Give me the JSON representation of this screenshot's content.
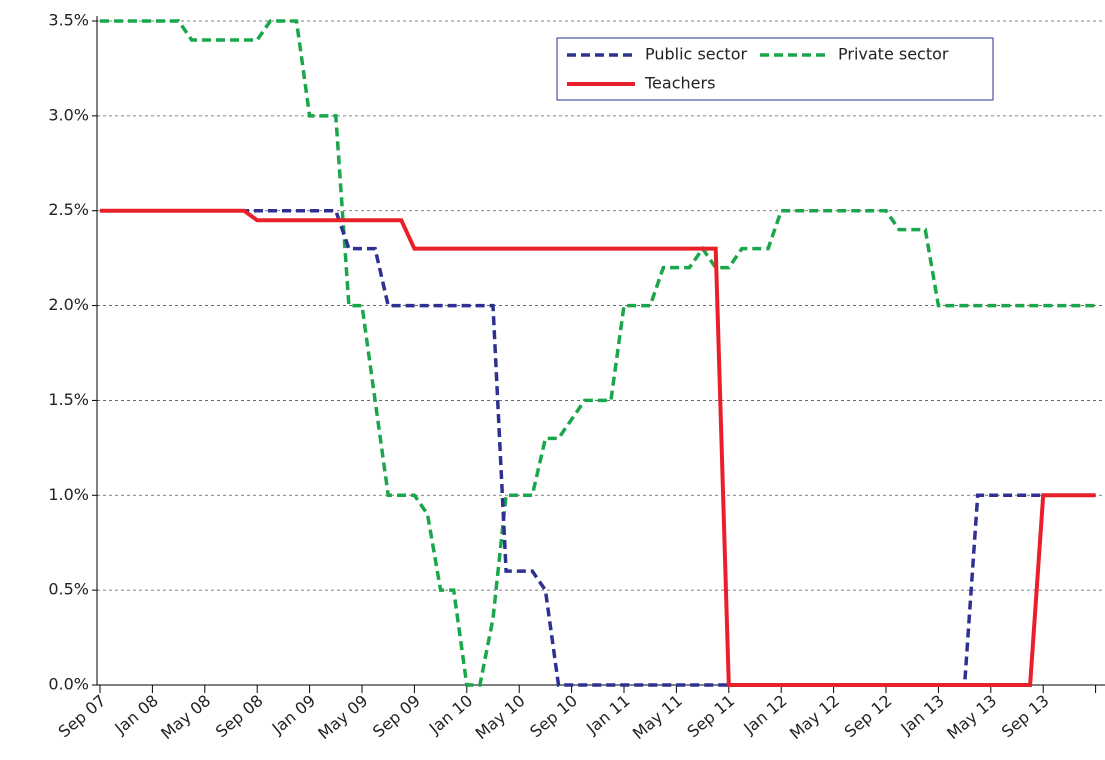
{
  "chart_data": {
    "type": "line",
    "categories": [
      "Sep 07",
      null,
      null,
      null,
      "Jan 08",
      null,
      null,
      null,
      "May 08",
      null,
      null,
      null,
      "Sep 08",
      null,
      null,
      null,
      "Jan 09",
      null,
      null,
      null,
      "May 09",
      null,
      null,
      null,
      "Sep 09",
      null,
      null,
      null,
      "Jan 10",
      null,
      null,
      null,
      "May 10",
      null,
      null,
      null,
      "Sep 10",
      null,
      null,
      null,
      "Jan 11",
      null,
      null,
      null,
      "May 11",
      null,
      null,
      null,
      "Sep 11",
      null,
      null,
      null,
      "Jan 12",
      null,
      null,
      null,
      "May 12",
      null,
      null,
      null,
      "Sep 12",
      null,
      null,
      null,
      "Jan 13",
      null,
      null,
      null,
      "May 13",
      null,
      null,
      null,
      "Sep 13",
      null,
      null,
      null,
      null
    ],
    "series": [
      {
        "name": "Public sector",
        "color": "#2e3192",
        "dashed": true,
        "values": [
          2.5,
          2.5,
          2.5,
          2.5,
          2.5,
          2.5,
          2.5,
          2.5,
          2.5,
          2.5,
          2.5,
          2.5,
          2.5,
          2.5,
          2.5,
          2.5,
          2.5,
          2.5,
          2.5,
          2.3,
          2.3,
          2.3,
          2.0,
          2.0,
          2.0,
          2.0,
          2.0,
          2.0,
          2.0,
          2.0,
          2.0,
          0.6,
          0.6,
          0.6,
          0.5,
          0,
          0,
          0,
          0,
          0,
          0,
          0,
          0,
          0,
          0,
          0,
          0,
          0,
          0,
          0,
          0,
          0,
          0,
          0,
          0,
          0,
          0,
          0,
          0,
          0,
          0,
          0,
          0,
          0,
          0,
          0,
          0,
          1.0,
          1.0,
          1.0,
          1.0,
          1.0,
          1.0,
          1.0,
          1.0,
          1.0,
          1.0
        ]
      },
      {
        "name": "Private sector",
        "color": "#1aa64a",
        "dashed": true,
        "values": [
          3.5,
          3.5,
          3.5,
          3.5,
          3.5,
          3.5,
          3.5,
          3.4,
          3.4,
          3.4,
          3.4,
          3.4,
          3.4,
          3.5,
          3.5,
          3.5,
          3.0,
          3.0,
          3.0,
          2.0,
          2.0,
          1.5,
          1.0,
          1.0,
          1.0,
          0.9,
          0.5,
          0.5,
          0,
          0,
          0.35,
          1.0,
          1.0,
          1.0,
          1.3,
          1.3,
          1.4,
          1.5,
          1.5,
          1.5,
          2.0,
          2.0,
          2.0,
          2.2,
          2.2,
          2.2,
          2.3,
          2.2,
          2.2,
          2.3,
          2.3,
          2.3,
          2.5,
          2.5,
          2.5,
          2.5,
          2.5,
          2.5,
          2.5,
          2.5,
          2.5,
          2.4,
          2.4,
          2.4,
          2.0,
          2.0,
          2.0,
          2.0,
          2.0,
          2.0,
          2.0,
          2.0,
          2.0,
          2.0,
          2.0,
          2.0,
          2.0
        ]
      },
      {
        "name": "Teachers",
        "color": "#e8202a",
        "dashed": false,
        "values": [
          2.5,
          2.5,
          2.5,
          2.5,
          2.5,
          2.5,
          2.5,
          2.5,
          2.5,
          2.5,
          2.5,
          2.5,
          2.45,
          2.45,
          2.45,
          2.45,
          2.45,
          2.45,
          2.45,
          2.45,
          2.45,
          2.45,
          2.45,
          2.45,
          2.3,
          2.3,
          2.3,
          2.3,
          2.3,
          2.3,
          2.3,
          2.3,
          2.3,
          2.3,
          2.3,
          2.3,
          2.3,
          2.3,
          2.3,
          2.3,
          2.3,
          2.3,
          2.3,
          2.3,
          2.3,
          2.3,
          2.3,
          2.3,
          0,
          0,
          0,
          0,
          0,
          0,
          0,
          0,
          0,
          0,
          0,
          0,
          0,
          0,
          0,
          0,
          0,
          0,
          0,
          0,
          0,
          0,
          0,
          0,
          1.0,
          1.0,
          1.0,
          1.0,
          1.0
        ]
      }
    ],
    "ylim": [
      0,
      3.5
    ],
    "yticks": [
      {
        "value": 0,
        "label": "0.0%"
      },
      {
        "value": 0.5,
        "label": "0.5%"
      },
      {
        "value": 1.0,
        "label": "1.0%"
      },
      {
        "value": 1.5,
        "label": "1.5%"
      },
      {
        "value": 2.0,
        "label": "2.0%"
      },
      {
        "value": 2.5,
        "label": "2.5%"
      },
      {
        "value": 3.0,
        "label": "3.0%"
      },
      {
        "value": 3.5,
        "label": "3.5%"
      }
    ],
    "grid": true,
    "legend": "top-right"
  }
}
